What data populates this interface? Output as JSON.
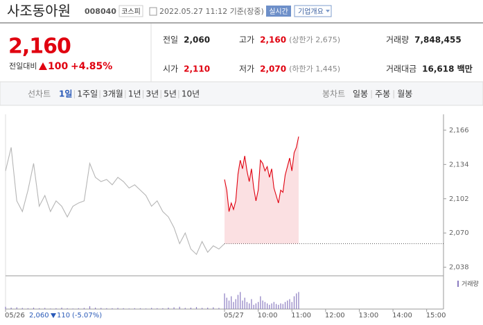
{
  "header": {
    "name": "사조동아원",
    "code": "008040",
    "market": "코스피",
    "datetime": "2022.05.27 11:12 기준(장중)",
    "realtime": "실시간",
    "company": "기업개요"
  },
  "quote": {
    "price": "2,160",
    "change_label": "전일대비",
    "change": "100",
    "rate": "+4.85%",
    "stats": [
      {
        "label": "전일",
        "value": "2,060"
      },
      {
        "label": "고가",
        "value": "2,160",
        "note": "(상한가 2,675)"
      },
      {
        "label": "거래량",
        "value": "7,848,455"
      },
      {
        "label": "시가",
        "value": "2,110"
      },
      {
        "label": "저가",
        "value": "2,070",
        "note": "(하한가 1,445)"
      },
      {
        "label": "거래대금",
        "value": "16,618 백만"
      }
    ]
  },
  "tabs": {
    "line_label": "선차트",
    "line_tabs": [
      "1일",
      "1주일",
      "3개월",
      "1년",
      "3년",
      "5년",
      "10년"
    ],
    "candle_label": "봉차트",
    "candle_tabs": [
      "일봉",
      "주봉",
      "월봉"
    ]
  },
  "chart_data": {
    "type": "line",
    "xlim": [
      0,
      780
    ],
    "ylim": [
      2030,
      2175
    ],
    "xticks": [
      {
        "value": 0,
        "label": "05/26"
      },
      {
        "value": 390,
        "label": "05/27"
      },
      {
        "value": 450,
        "label": "10:00"
      },
      {
        "value": 510,
        "label": "11:00"
      },
      {
        "value": 570,
        "label": "12:00"
      },
      {
        "value": 630,
        "label": "13:00"
      },
      {
        "value": 690,
        "label": "14:00"
      },
      {
        "value": 750,
        "label": "15:00"
      }
    ],
    "yticks": [
      {
        "value": 2166,
        "label": "2,166"
      },
      {
        "value": 2134,
        "label": "2,134"
      },
      {
        "value": 2102,
        "label": "2,102"
      },
      {
        "value": 2070,
        "label": "2,070"
      },
      {
        "value": 2038,
        "label": "2,038"
      }
    ],
    "base_line": 2060,
    "series": [
      {
        "color": "#b5b5b5",
        "x": [
          0,
          10,
          20,
          30,
          40,
          50,
          60,
          70,
          80,
          90,
          100,
          110,
          120,
          130,
          140,
          150,
          160,
          170,
          180,
          190,
          200,
          210,
          220,
          230,
          240,
          250,
          260,
          270,
          280,
          290,
          300,
          310,
          320,
          330,
          340,
          350,
          360,
          370,
          380,
          390
        ],
        "values": [
          2128,
          2150,
          2100,
          2090,
          2110,
          2135,
          2095,
          2105,
          2090,
          2100,
          2095,
          2085,
          2095,
          2098,
          2100,
          2135,
          2122,
          2118,
          2120,
          2115,
          2122,
          2118,
          2112,
          2115,
          2110,
          2105,
          2095,
          2100,
          2090,
          2085,
          2075,
          2060,
          2070,
          2055,
          2050,
          2062,
          2052,
          2058,
          2055,
          2060
        ]
      },
      {
        "color": "#e0000f",
        "x": [
          390,
          394,
          398,
          402,
          406,
          410,
          414,
          418,
          422,
          426,
          430,
          434,
          438,
          442,
          446,
          450,
          454,
          458,
          462,
          466,
          470,
          474,
          478,
          482,
          486,
          490,
          494,
          498,
          502,
          506,
          510,
          514,
          518,
          522
        ],
        "values": [
          2120,
          2110,
          2090,
          2098,
          2092,
          2100,
          2125,
          2138,
          2130,
          2142,
          2128,
          2118,
          2130,
          2112,
          2100,
          2110,
          2138,
          2135,
          2128,
          2132,
          2122,
          2130,
          2112,
          2105,
          2098,
          2110,
          2108,
          2124,
          2132,
          2140,
          2128,
          2145,
          2150,
          2160
        ]
      }
    ],
    "volume": {
      "name": "거래량",
      "color": "#8a7bc0",
      "vlim": [
        0,
        100
      ],
      "x": [
        0,
        10,
        20,
        30,
        40,
        50,
        60,
        70,
        80,
        90,
        100,
        110,
        120,
        130,
        140,
        150,
        160,
        170,
        180,
        190,
        200,
        210,
        220,
        230,
        240,
        250,
        260,
        270,
        280,
        290,
        300,
        310,
        320,
        330,
        340,
        350,
        360,
        370,
        380,
        390,
        394,
        398,
        402,
        406,
        410,
        414,
        418,
        422,
        426,
        430,
        434,
        438,
        442,
        446,
        450,
        454,
        458,
        462,
        466,
        470,
        474,
        478,
        482,
        486,
        490,
        494,
        498,
        502,
        506,
        510,
        514,
        518,
        522
      ],
      "values": [
        8,
        5,
        6,
        4,
        3,
        5,
        3,
        4,
        2,
        3,
        5,
        3,
        2,
        3,
        4,
        10,
        5,
        4,
        3,
        3,
        4,
        3,
        2,
        3,
        3,
        2,
        4,
        3,
        3,
        5,
        6,
        8,
        4,
        5,
        7,
        4,
        5,
        6,
        4,
        55,
        40,
        30,
        45,
        25,
        35,
        50,
        60,
        30,
        40,
        25,
        20,
        35,
        15,
        20,
        25,
        45,
        30,
        25,
        20,
        15,
        20,
        25,
        18,
        15,
        20,
        18,
        25,
        30,
        35,
        25,
        45,
        55,
        60
      ]
    },
    "prev_day": {
      "close": "2,060",
      "change": "110",
      "rate": "(-5.07%)"
    }
  }
}
